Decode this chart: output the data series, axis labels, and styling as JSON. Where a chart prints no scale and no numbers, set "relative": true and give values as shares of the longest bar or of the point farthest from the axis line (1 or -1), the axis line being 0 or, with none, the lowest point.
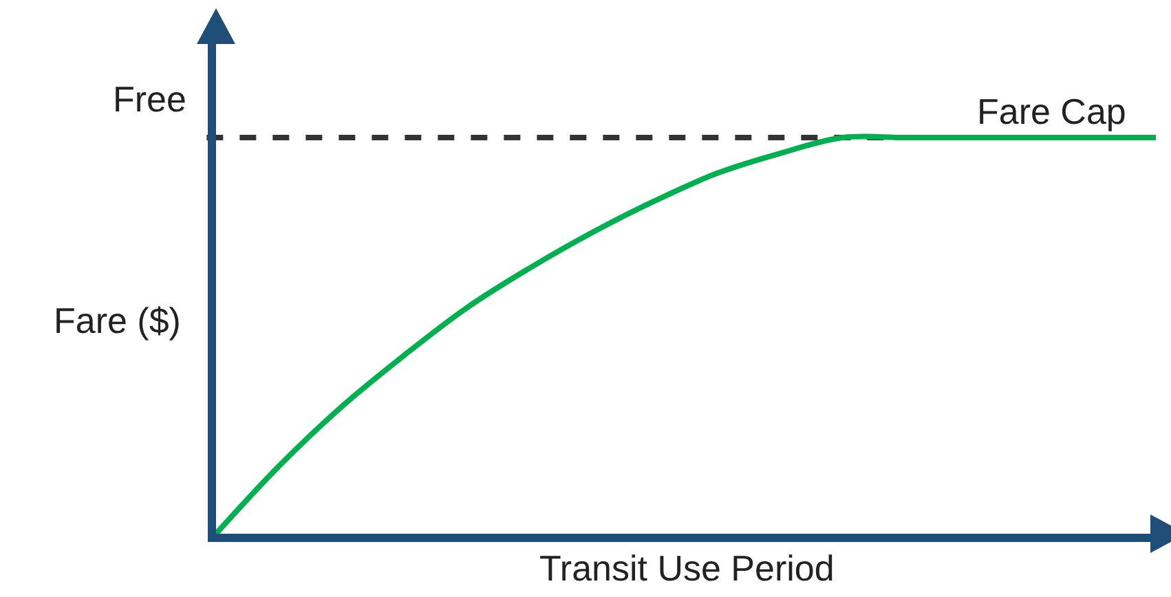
{
  "chart_data": {
    "type": "line",
    "relative": true,
    "xlabel": "Transit Use Period",
    "ylabel": "Fare ($)",
    "categories": [
      null,
      null,
      null,
      null,
      null,
      null,
      null,
      null,
      null,
      null,
      null,
      null,
      null,
      null,
      null,
      null
    ],
    "series": [
      {
        "color": "#00b050",
        "values": [
          0,
          0.17,
          0.32,
          0.45,
          0.57,
          0.67,
          0.76,
          0.84,
          0.91,
          0.96,
          1,
          1,
          1,
          1,
          1,
          1
        ]
      }
    ],
    "ref_lines": [
      {
        "axis": "y",
        "value": 1,
        "label": "Fare Cap",
        "color": "#333333",
        "line_style": "dashed"
      }
    ],
    "annotations": [
      "Free"
    ]
  }
}
